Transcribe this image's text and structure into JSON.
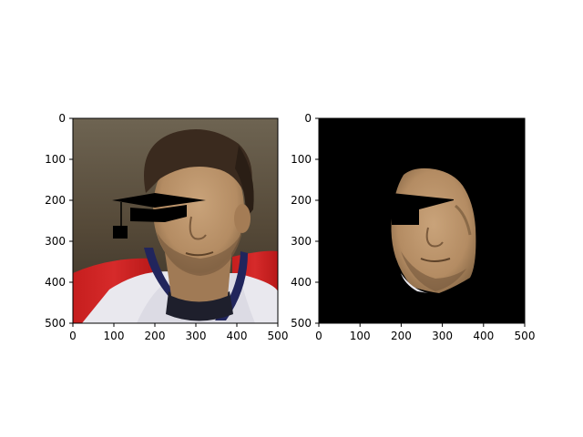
{
  "chart_data": [
    {
      "type": "image",
      "title": "",
      "xlabel": "",
      "ylabel": "",
      "xlim": [
        0,
        500
      ],
      "ylim": [
        500,
        0
      ],
      "y_inverted": true,
      "grid": false,
      "xticks": [
        0,
        100,
        200,
        300,
        400,
        500
      ],
      "yticks": [
        0,
        100,
        200,
        300,
        400,
        500
      ],
      "content": "photo",
      "overlays": [
        {
          "kind": "graduation-cap",
          "color": "#000000",
          "board": [
            [
              95,
              200
            ],
            [
              200,
              183
            ],
            [
              325,
              200
            ],
            [
              200,
              217
            ]
          ],
          "crown": [
            [
              140,
              218
            ],
            [
              140,
              250
            ],
            [
              225,
              252
            ],
            [
              278,
              238
            ],
            [
              278,
              212
            ]
          ],
          "tassel_line": [
            [
              118,
              206
            ],
            [
              118,
              265
            ]
          ],
          "tassel": [
            [
              98,
              262
            ],
            [
              135,
              293
            ]
          ]
        }
      ]
    },
    {
      "type": "image",
      "title": "",
      "xlabel": "",
      "ylabel": "",
      "xlim": [
        0,
        500
      ],
      "ylim": [
        500,
        0
      ],
      "y_inverted": true,
      "grid": false,
      "xticks": [
        0,
        100,
        200,
        300,
        400,
        500
      ],
      "yticks": [
        0,
        100,
        200,
        300,
        400,
        500
      ],
      "background": "#000000",
      "content": "face-segmentation-mask",
      "overlays": [
        {
          "kind": "eye-bar",
          "color": "#000000",
          "polygon": [
            [
              175,
              182
            ],
            [
              330,
              198
            ],
            [
              330,
              200
            ],
            [
              245,
              222
            ],
            [
              245,
              262
            ],
            [
              175,
              262
            ]
          ]
        }
      ]
    }
  ]
}
